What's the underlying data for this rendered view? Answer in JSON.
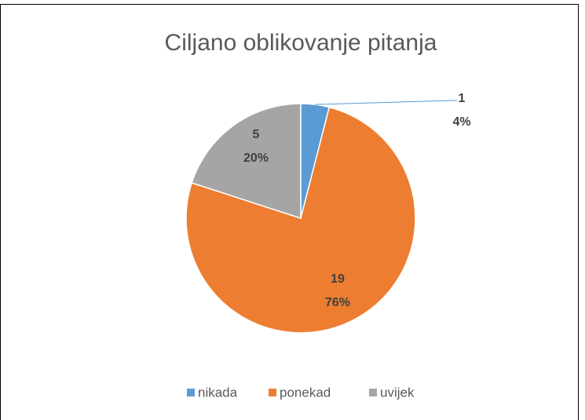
{
  "chart_data": {
    "type": "pie",
    "title": "Ciljano oblikovanje pitanja",
    "categories": [
      "nikada",
      "ponekad",
      "uvijek"
    ],
    "values": [
      1,
      19,
      5
    ],
    "percentages": [
      4,
      76,
      20
    ],
    "percentage_labels": [
      "4%",
      "76%",
      "20%"
    ],
    "colors": [
      "#5b9bd5",
      "#ed7d31",
      "#a5a5a5"
    ],
    "legend": "bottom"
  }
}
